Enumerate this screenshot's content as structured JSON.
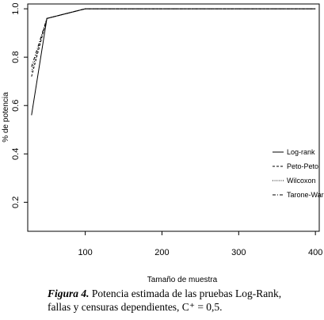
{
  "chart_data": {
    "type": "line",
    "xlabel": "Tamaño de muestra",
    "ylabel": "% de potencia",
    "xlim": [
      25,
      405
    ],
    "ylim": [
      0.08,
      1.02
    ],
    "xticks": [
      100,
      200,
      300,
      400
    ],
    "yticks": [
      0.2,
      0.4,
      0.6,
      0.8,
      1.0
    ],
    "ytick_labels": [
      "0.2",
      "0.4",
      "0.6",
      "0.8",
      "1.0"
    ],
    "x": [
      30,
      50,
      100,
      200,
      300,
      400
    ],
    "series": [
      {
        "name": "Log-rank",
        "dash": "solid",
        "values": [
          0.56,
          0.96,
          1.0,
          1.0,
          1.0,
          1.0
        ]
      },
      {
        "name": "Peto-Peto",
        "dash": "dashed",
        "values": [
          0.72,
          0.96,
          1.0,
          1.0,
          1.0,
          1.0
        ]
      },
      {
        "name": "Wilcoxon",
        "dash": "dotted",
        "values": [
          0.74,
          0.96,
          1.0,
          1.0,
          1.0,
          1.0
        ]
      },
      {
        "name": "Tarone-Ware",
        "dash": "dashdot",
        "values": [
          0.76,
          0.96,
          1.0,
          1.0,
          1.0,
          1.0
        ]
      }
    ],
    "legend_position": "right-middle"
  },
  "caption": {
    "label": "Figura 4.",
    "line1": "Potencia estimada de las pruebas Log-Rank,",
    "line2": "fallas y censuras dependientes, C⁺ = 0,5."
  }
}
